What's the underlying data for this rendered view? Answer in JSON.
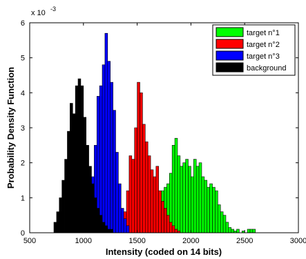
{
  "chart_data": {
    "type": "bar",
    "title": "",
    "xlabel": "Intensity (coded on 14 bits)",
    "ylabel": "Probability Density Function",
    "y_scale_label": "x 10",
    "y_scale_exponent": "-3",
    "xlim": [
      500,
      3000
    ],
    "ylim": [
      0,
      6
    ],
    "x_ticks": [
      500,
      1000,
      1500,
      2000,
      2500,
      3000
    ],
    "y_ticks": [
      0,
      1,
      2,
      3,
      4,
      5,
      6
    ],
    "bin_width": 25,
    "grid": false,
    "legend_position": "top-right",
    "series": [
      {
        "name": "target n°1",
        "color": "#00ff00",
        "bins": [
          [
            1700,
            0.9
          ],
          [
            1725,
            1.2
          ],
          [
            1750,
            1.3
          ],
          [
            1775,
            1.4
          ],
          [
            1800,
            1.7
          ],
          [
            1825,
            2.5
          ],
          [
            1850,
            2.7
          ],
          [
            1875,
            2.2
          ],
          [
            1900,
            1.9
          ],
          [
            1925,
            2.0
          ],
          [
            1950,
            2.1
          ],
          [
            1975,
            1.9
          ],
          [
            2000,
            1.6
          ],
          [
            2025,
            2.1
          ],
          [
            2050,
            1.9
          ],
          [
            2075,
            2.0
          ],
          [
            2100,
            1.6
          ],
          [
            2125,
            1.5
          ],
          [
            2150,
            1.3
          ],
          [
            2175,
            1.4
          ],
          [
            2200,
            1.3
          ],
          [
            2225,
            1.2
          ],
          [
            2250,
            0.8
          ],
          [
            2275,
            0.6
          ],
          [
            2300,
            0.5
          ],
          [
            2325,
            0.3
          ],
          [
            2350,
            0.15
          ],
          [
            2375,
            0.1
          ],
          [
            2400,
            0.05
          ],
          [
            2425,
            0.1
          ],
          [
            2475,
            0.05
          ],
          [
            2525,
            0.1
          ],
          [
            2550,
            0.1
          ],
          [
            2575,
            0.1
          ]
        ]
      },
      {
        "name": "target n°2",
        "color": "#ff0000",
        "bins": [
          [
            1350,
            0.4
          ],
          [
            1375,
            0.6
          ],
          [
            1400,
            1.2
          ],
          [
            1425,
            2.2
          ],
          [
            1450,
            2.1
          ],
          [
            1475,
            3.0
          ],
          [
            1500,
            4.3
          ],
          [
            1525,
            4.0
          ],
          [
            1550,
            3.1
          ],
          [
            1575,
            2.6
          ],
          [
            1600,
            2.2
          ],
          [
            1625,
            1.8
          ],
          [
            1650,
            1.6
          ],
          [
            1675,
            1.9
          ],
          [
            1700,
            1.2
          ],
          [
            1725,
            0.9
          ],
          [
            1750,
            0.7
          ],
          [
            1775,
            0.5
          ],
          [
            1800,
            0.3
          ],
          [
            1825,
            0.2
          ],
          [
            1850,
            0.1
          ],
          [
            1875,
            0.05
          ]
        ]
      },
      {
        "name": "target n°3",
        "color": "#0000ff",
        "bins": [
          [
            1050,
            0.3
          ],
          [
            1075,
            1.6
          ],
          [
            1100,
            2.5
          ],
          [
            1125,
            3.9
          ],
          [
            1150,
            4.2
          ],
          [
            1175,
            4.8
          ],
          [
            1200,
            5.7
          ],
          [
            1225,
            4.9
          ],
          [
            1250,
            4.3
          ],
          [
            1275,
            3.5
          ],
          [
            1300,
            2.3
          ],
          [
            1325,
            1.4
          ],
          [
            1350,
            0.7
          ],
          [
            1375,
            0.4
          ],
          [
            1400,
            0.2
          ]
        ]
      },
      {
        "name": "background",
        "color": "#000000",
        "bins": [
          [
            725,
            0.3
          ],
          [
            750,
            0.6
          ],
          [
            775,
            1.0
          ],
          [
            800,
            1.5
          ],
          [
            825,
            2.1
          ],
          [
            850,
            2.9
          ],
          [
            875,
            3.7
          ],
          [
            900,
            3.4
          ],
          [
            925,
            4.2
          ],
          [
            950,
            4.4
          ],
          [
            975,
            4.2
          ],
          [
            1000,
            3.3
          ],
          [
            1025,
            2.5
          ],
          [
            1050,
            1.9
          ],
          [
            1075,
            1.4
          ],
          [
            1100,
            1.0
          ],
          [
            1125,
            0.7
          ],
          [
            1150,
            0.5
          ],
          [
            1175,
            0.3
          ],
          [
            1200,
            0.2
          ],
          [
            1225,
            0.1
          ],
          [
            1250,
            0.1
          ]
        ]
      }
    ]
  }
}
